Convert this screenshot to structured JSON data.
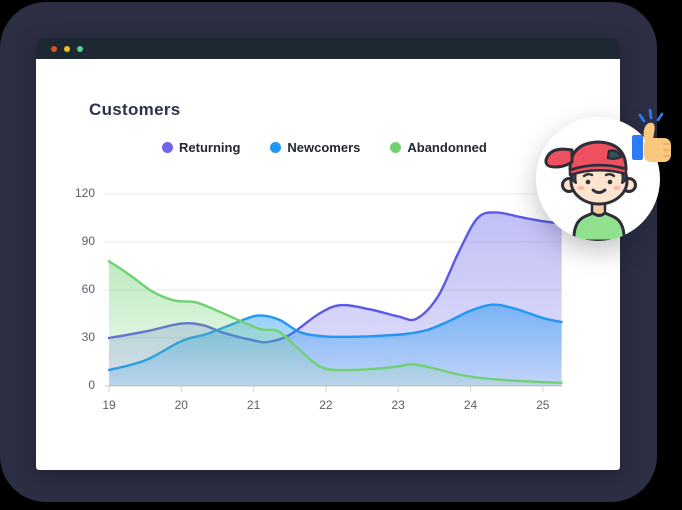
{
  "colors": {
    "page_background": "#000000",
    "card_background": "#2c2f44",
    "window_header": "#1e2833",
    "accent_blue": "#2e7cf5"
  },
  "window": {
    "traffic_lights": [
      {
        "name": "close",
        "color": "#e2521e"
      },
      {
        "name": "minimize",
        "color": "#f0c31b"
      },
      {
        "name": "zoom",
        "color": "#55d18c"
      }
    ],
    "title": "Customers"
  },
  "legend": [
    {
      "label": "Returning",
      "color": "#6f63ee"
    },
    {
      "label": "Newcomers",
      "color": "#2196f3"
    },
    {
      "label": "Abandonned",
      "color": "#6fd172"
    }
  ],
  "chart_data": {
    "type": "area",
    "title": "Customers",
    "xlabel": "",
    "ylabel": "",
    "x_ticks": [
      19,
      20,
      21,
      22,
      23,
      24,
      25
    ],
    "y_ticks": [
      0,
      30,
      60,
      90,
      120
    ],
    "xlim": [
      19,
      25.26
    ],
    "ylim": [
      0,
      130
    ],
    "grid": "horizontal",
    "legend_position": "top",
    "series": [
      {
        "name": "Returning",
        "color": "#5d59e6",
        "fill_opacity_top": 0.38,
        "fill_opacity_bottom": 0.18,
        "points": [
          [
            19,
            30
          ],
          [
            19.5,
            34
          ],
          [
            20,
            39
          ],
          [
            20.3,
            38
          ],
          [
            20.6,
            33
          ],
          [
            21,
            28.5
          ],
          [
            21.2,
            27.5
          ],
          [
            21.5,
            32
          ],
          [
            21.9,
            45
          ],
          [
            22.2,
            50.5
          ],
          [
            22.6,
            48
          ],
          [
            23,
            43.5
          ],
          [
            23.25,
            42
          ],
          [
            23.55,
            56
          ],
          [
            23.85,
            85
          ],
          [
            24.1,
            105
          ],
          [
            24.35,
            108.5
          ],
          [
            24.7,
            105.5
          ],
          [
            25,
            103
          ],
          [
            25.26,
            101.5
          ]
        ]
      },
      {
        "name": "Newcomers",
        "color": "#2196f3",
        "fill_opacity_top": 0.5,
        "fill_opacity_bottom": 0.16,
        "points": [
          [
            19,
            10
          ],
          [
            19.5,
            16
          ],
          [
            20,
            28
          ],
          [
            20.35,
            32.5
          ],
          [
            20.7,
            38.5
          ],
          [
            21.05,
            44
          ],
          [
            21.35,
            41.5
          ],
          [
            21.65,
            33.5
          ],
          [
            22,
            31
          ],
          [
            22.4,
            30.8
          ],
          [
            22.8,
            31.5
          ],
          [
            23.1,
            32.5
          ],
          [
            23.4,
            35
          ],
          [
            23.7,
            40.5
          ],
          [
            24,
            47
          ],
          [
            24.3,
            50.8
          ],
          [
            24.6,
            48.5
          ],
          [
            25,
            42.5
          ],
          [
            25.26,
            40
          ]
        ]
      },
      {
        "name": "Abandonned",
        "color": "#6fd172",
        "fill_opacity_top": 0.45,
        "fill_opacity_bottom": 0.1,
        "points": [
          [
            19,
            78
          ],
          [
            19.3,
            69
          ],
          [
            19.6,
            59
          ],
          [
            19.9,
            53.5
          ],
          [
            20.2,
            52.3
          ],
          [
            20.5,
            47
          ],
          [
            20.8,
            41
          ],
          [
            21.1,
            35.5
          ],
          [
            21.35,
            34
          ],
          [
            21.65,
            22
          ],
          [
            21.95,
            11.5
          ],
          [
            22.3,
            10
          ],
          [
            22.7,
            10.8
          ],
          [
            23,
            12.3
          ],
          [
            23.2,
            13.6
          ],
          [
            23.5,
            11
          ],
          [
            23.8,
            7.5
          ],
          [
            24.1,
            5.2
          ],
          [
            24.5,
            3.6
          ],
          [
            24.9,
            2.6
          ],
          [
            25.26,
            2
          ]
        ]
      }
    ]
  },
  "overlay": {
    "avatar": "boy-with-red-cap-avatar",
    "reaction": "thumbs-up"
  }
}
